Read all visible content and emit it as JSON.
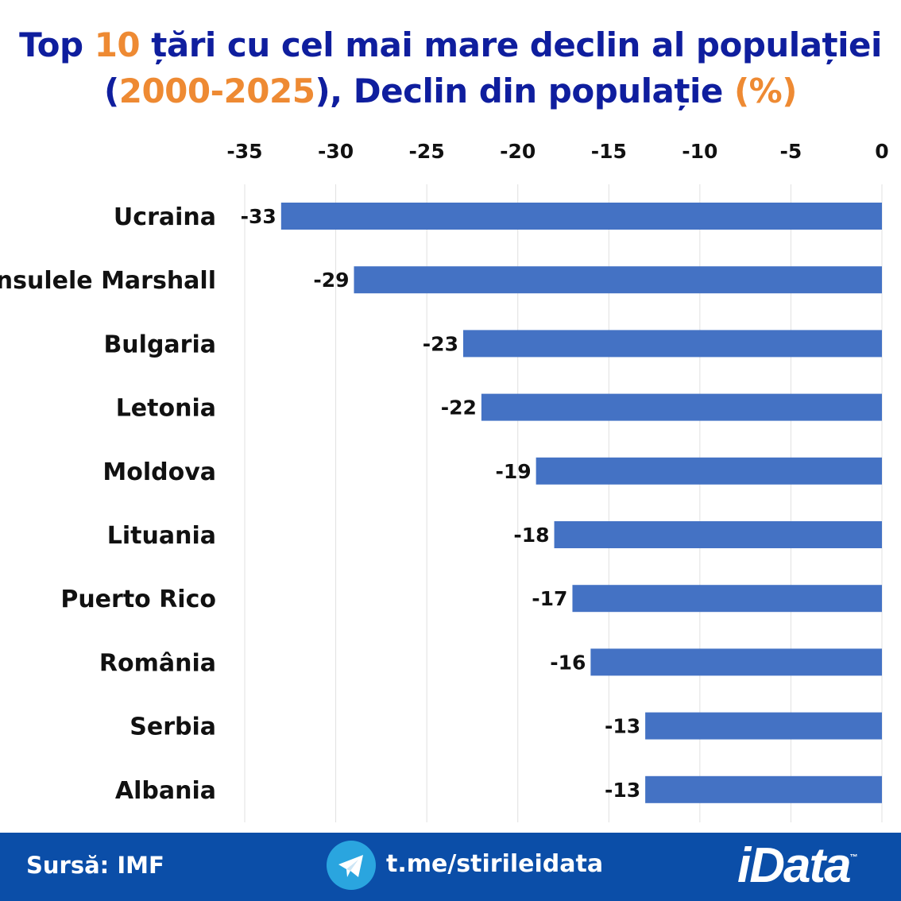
{
  "title": {
    "segments": [
      {
        "text": "Top ",
        "color": "#0f1e9e"
      },
      {
        "text": "10",
        "color": "#ee8a33"
      },
      {
        "text": " țări cu cel mai mare declin al populației",
        "color": "#0f1e9e"
      },
      {
        "text": "(",
        "color": "#0f1e9e",
        "break": true
      },
      {
        "text": "2000-2025",
        "color": "#ee8a33"
      },
      {
        "text": "), Declin din  populație ",
        "color": "#0f1e9e"
      },
      {
        "text": "(%)",
        "color": "#ee8a33"
      }
    ]
  },
  "chart_data": {
    "type": "bar",
    "orientation": "horizontal",
    "categories": [
      "Ucraina",
      "Insulele Marshall",
      "Bulgaria",
      "Letonia",
      "Moldova",
      "Lituania",
      "Puerto Rico",
      "România",
      "Serbia",
      "Albania"
    ],
    "values": [
      -33,
      -29,
      -23,
      -22,
      -19,
      -18,
      -17,
      -16,
      -13,
      -13
    ],
    "data_labels": [
      "-33",
      "-29",
      "-23",
      "-22",
      "-19",
      "-18",
      "-17",
      "-16",
      "-13",
      "-13"
    ],
    "xlim": [
      -35,
      0
    ],
    "xticks": [
      "-35",
      "-30",
      "-25",
      "-20",
      "-15",
      "-10",
      "-5",
      "0"
    ],
    "xtick_values": [
      -35,
      -30,
      -25,
      -20,
      -15,
      -10,
      -5,
      0
    ],
    "xaxis_position": "top",
    "grid": true,
    "bar_color": "#4472c4"
  },
  "footer": {
    "source": "Sursă: IMF",
    "link": "t.me/stirileidata",
    "logo": "iData",
    "logo_tm": "™",
    "telegram_icon": "telegram-icon",
    "background": "#0b4ea8"
  }
}
